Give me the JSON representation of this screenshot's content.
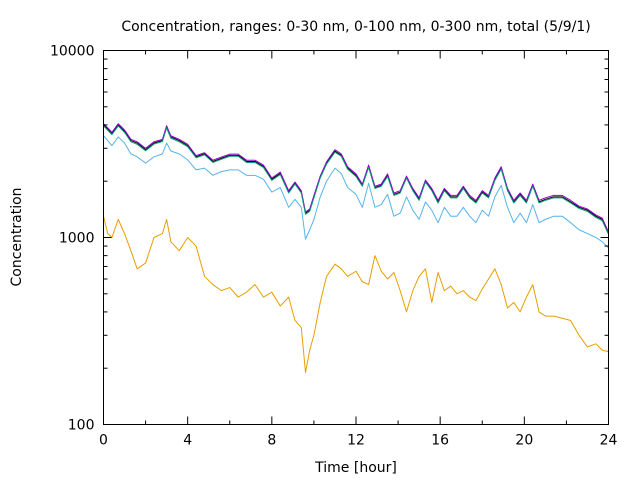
{
  "chart_data": {
    "type": "line",
    "title": "Concentration, ranges: 0-30 nm, 0-100 nm, 0-300 nm, total (5/9/1)",
    "xlabel": "Time [hour]",
    "ylabel": "Concentration",
    "yscale": "log",
    "xlim": [
      0,
      24
    ],
    "ylim": [
      100,
      10000
    ],
    "x_ticks": [
      0,
      4,
      8,
      12,
      16,
      20,
      24
    ],
    "x_tick_labels": [
      "0",
      "4",
      "8",
      "12",
      "16",
      "20",
      "24"
    ],
    "y_ticks": [
      100,
      1000,
      10000
    ],
    "y_tick_labels": [
      "100",
      "1000",
      "10000"
    ],
    "grid": false,
    "legend": "none",
    "x": [
      0,
      0.2,
      0.4,
      0.7,
      1.0,
      1.3,
      1.6,
      2.0,
      2.4,
      2.8,
      3.0,
      3.2,
      3.6,
      4.0,
      4.4,
      4.8,
      5.2,
      5.6,
      6.0,
      6.4,
      6.8,
      7.2,
      7.6,
      8.0,
      8.4,
      8.8,
      9.1,
      9.4,
      9.6,
      9.8,
      10.0,
      10.3,
      10.6,
      11.0,
      11.3,
      11.6,
      12.0,
      12.3,
      12.6,
      12.9,
      13.2,
      13.5,
      13.8,
      14.1,
      14.4,
      14.7,
      15.0,
      15.3,
      15.6,
      15.9,
      16.2,
      16.5,
      16.8,
      17.1,
      17.4,
      17.7,
      18.0,
      18.3,
      18.6,
      18.9,
      19.2,
      19.5,
      19.8,
      20.1,
      20.4,
      20.7,
      21.0,
      21.4,
      21.8,
      22.2,
      22.6,
      23.0,
      23.4,
      23.7,
      24.0
    ],
    "series": [
      {
        "color": "#000000",
        "values": [
          4000,
          3800,
          3600,
          4000,
          3700,
          3300,
          3200,
          2950,
          3200,
          3300,
          3900,
          3450,
          3300,
          3100,
          2700,
          2800,
          2550,
          2650,
          2750,
          2750,
          2550,
          2550,
          2400,
          2050,
          2200,
          1750,
          1950,
          1750,
          1350,
          1400,
          1650,
          2100,
          2500,
          2900,
          2750,
          2350,
          2150,
          1900,
          2400,
          1850,
          1900,
          2150,
          1700,
          1750,
          2100,
          1800,
          1600,
          2000,
          1800,
          1550,
          1800,
          1650,
          1650,
          1850,
          1650,
          1550,
          1750,
          1650,
          2050,
          2350,
          1800,
          1550,
          1700,
          1550,
          1900,
          1550,
          1600,
          1650,
          1650,
          1550,
          1450,
          1400,
          1300,
          1250,
          1050
        ]
      },
      {
        "color": "#9400d3",
        "values": [
          4060,
          3860,
          3650,
          4060,
          3760,
          3350,
          3250,
          3000,
          3250,
          3350,
          3960,
          3500,
          3350,
          3150,
          2740,
          2840,
          2590,
          2690,
          2790,
          2790,
          2590,
          2590,
          2440,
          2080,
          2240,
          1780,
          1980,
          1780,
          1370,
          1420,
          1680,
          2130,
          2540,
          2950,
          2800,
          2390,
          2190,
          1930,
          2440,
          1880,
          1930,
          2190,
          1730,
          1780,
          2130,
          1830,
          1630,
          2030,
          1830,
          1580,
          1830,
          1680,
          1680,
          1880,
          1680,
          1580,
          1780,
          1680,
          2080,
          2390,
          1830,
          1580,
          1730,
          1580,
          1930,
          1580,
          1630,
          1680,
          1680,
          1580,
          1470,
          1420,
          1320,
          1270,
          1070
        ]
      },
      {
        "color": "#009e73",
        "values": [
          3950,
          3750,
          3550,
          3950,
          3650,
          3250,
          3150,
          2910,
          3160,
          3260,
          3850,
          3400,
          3250,
          3060,
          2670,
          2770,
          2520,
          2620,
          2720,
          2720,
          2520,
          2520,
          2370,
          2020,
          2170,
          1730,
          1930,
          1730,
          1330,
          1380,
          1630,
          2080,
          2470,
          2860,
          2720,
          2320,
          2120,
          1880,
          2370,
          1830,
          1880,
          2120,
          1680,
          1730,
          2080,
          1780,
          1580,
          1980,
          1780,
          1530,
          1780,
          1630,
          1630,
          1830,
          1630,
          1530,
          1730,
          1630,
          2020,
          2320,
          1780,
          1530,
          1680,
          1530,
          1880,
          1530,
          1580,
          1630,
          1630,
          1530,
          1430,
          1380,
          1280,
          1230,
          1040
        ]
      },
      {
        "color": "#56b4e9",
        "values": [
          3500,
          3300,
          3100,
          3450,
          3200,
          2800,
          2700,
          2500,
          2700,
          2800,
          3200,
          2900,
          2800,
          2600,
          2300,
          2350,
          2150,
          2250,
          2300,
          2300,
          2150,
          2150,
          2050,
          1750,
          1850,
          1450,
          1600,
          1450,
          980,
          1100,
          1250,
          1650,
          2000,
          2350,
          2200,
          1850,
          1700,
          1450,
          1950,
          1450,
          1500,
          1700,
          1300,
          1350,
          1650,
          1400,
          1250,
          1550,
          1400,
          1200,
          1450,
          1300,
          1300,
          1450,
          1300,
          1200,
          1400,
          1300,
          1650,
          1900,
          1450,
          1200,
          1350,
          1200,
          1500,
          1200,
          1250,
          1300,
          1300,
          1200,
          1100,
          1050,
          1000,
          950,
          880
        ]
      },
      {
        "color": "#e69f00",
        "values": [
          1300,
          1050,
          1000,
          1250,
          1050,
          850,
          680,
          730,
          1000,
          1050,
          1250,
          950,
          850,
          1000,
          900,
          620,
          560,
          520,
          540,
          480,
          510,
          560,
          480,
          510,
          430,
          480,
          360,
          330,
          190,
          250,
          300,
          450,
          620,
          720,
          680,
          620,
          660,
          580,
          560,
          800,
          660,
          600,
          650,
          520,
          400,
          520,
          620,
          680,
          450,
          650,
          520,
          550,
          500,
          520,
          480,
          460,
          530,
          600,
          680,
          560,
          420,
          450,
          400,
          480,
          560,
          400,
          380,
          380,
          370,
          360,
          300,
          260,
          270,
          250,
          245
        ]
      }
    ]
  }
}
